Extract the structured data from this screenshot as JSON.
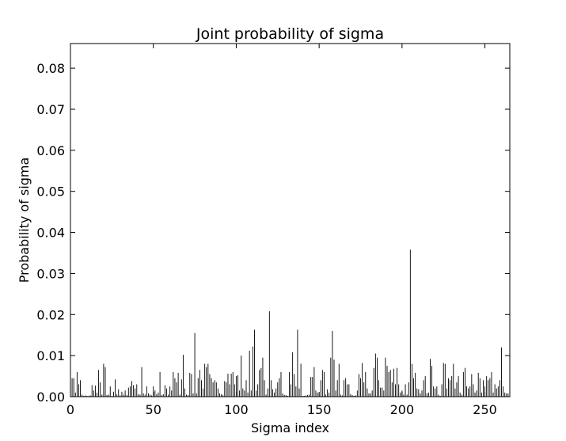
{
  "chart_data": {
    "type": "bar",
    "title": "Joint probability of sigma",
    "xlabel": "Sigma index",
    "ylabel": "Probability of sigma",
    "xlim": [
      0,
      265
    ],
    "ylim": [
      0.0,
      0.086
    ],
    "grid": false,
    "legend": "none",
    "bar_color": "#000000",
    "xticks": [
      0,
      50,
      100,
      150,
      200,
      250
    ],
    "xtick_labels": [
      "0",
      "50",
      "100",
      "150",
      "200",
      "250"
    ],
    "yticks": [
      0.0,
      0.01,
      0.02,
      0.03,
      0.04,
      0.05,
      0.06,
      0.07,
      0.08
    ],
    "ytick_labels": [
      "0.00",
      "0.01",
      "0.02",
      "0.03",
      "0.04",
      "0.05",
      "0.06",
      "0.07",
      "0.08"
    ],
    "x": [
      1,
      2,
      3,
      4,
      5,
      6,
      7,
      8,
      9,
      10,
      11,
      12,
      13,
      14,
      15,
      16,
      17,
      18,
      19,
      20,
      21,
      22,
      23,
      24,
      25,
      26,
      27,
      28,
      29,
      30,
      31,
      32,
      33,
      34,
      35,
      36,
      37,
      38,
      39,
      40,
      41,
      42,
      43,
      44,
      45,
      46,
      47,
      48,
      49,
      50,
      51,
      52,
      53,
      54,
      55,
      56,
      57,
      58,
      59,
      60,
      61,
      62,
      63,
      64,
      65,
      66,
      67,
      68,
      69,
      70,
      71,
      72,
      73,
      74,
      75,
      76,
      77,
      78,
      79,
      80,
      81,
      82,
      83,
      84,
      85,
      86,
      87,
      88,
      89,
      90,
      91,
      92,
      93,
      94,
      95,
      96,
      97,
      98,
      99,
      100,
      101,
      102,
      103,
      104,
      105,
      106,
      107,
      108,
      109,
      110,
      111,
      112,
      113,
      114,
      115,
      116,
      117,
      118,
      119,
      120,
      121,
      122,
      123,
      124,
      125,
      126,
      127,
      128,
      129,
      130,
      131,
      132,
      133,
      134,
      135,
      136,
      137,
      138,
      139,
      140,
      141,
      142,
      143,
      144,
      145,
      146,
      147,
      148,
      149,
      150,
      151,
      152,
      153,
      154,
      155,
      156,
      157,
      158,
      159,
      160,
      161,
      162,
      163,
      164,
      165,
      166,
      167,
      168,
      169,
      170,
      171,
      172,
      173,
      174,
      175,
      176,
      177,
      178,
      179,
      180,
      181,
      182,
      183,
      184,
      185,
      186,
      187,
      188,
      189,
      190,
      191,
      192,
      193,
      194,
      195,
      196,
      197,
      198,
      199,
      200,
      201,
      202,
      203,
      204,
      205,
      206,
      207,
      208,
      209,
      210,
      211,
      212,
      213,
      214,
      215,
      216,
      217,
      218,
      219,
      220,
      221,
      222,
      223,
      224,
      225,
      226,
      227,
      228,
      229,
      230,
      231,
      232,
      233,
      234,
      235,
      236,
      237,
      238,
      239,
      240,
      241,
      242,
      243,
      244,
      245,
      246,
      247,
      248,
      249,
      250,
      251,
      252,
      253,
      254,
      255,
      256,
      257,
      258,
      259,
      260,
      261,
      262,
      263,
      264
    ],
    "values": [
      0.0045,
      0.0045,
      0.001,
      0.006,
      0.003,
      0.004,
      0.0005,
      0.0002,
      0.0003,
      0.0002,
      0.0002,
      0.0003,
      0.0028,
      0.0015,
      0.0027,
      0.001,
      0.0065,
      0.0035,
      0.0005,
      0.008,
      0.0072,
      0.0004,
      0.0005,
      0.0025,
      0.0002,
      0.0012,
      0.0042,
      0.0006,
      0.0018,
      0.0003,
      0.0012,
      0.0005,
      0.0015,
      0.0004,
      0.0022,
      0.0025,
      0.0038,
      0.0028,
      0.002,
      0.003,
      0.0006,
      0.0005,
      0.0072,
      0.0008,
      0.0005,
      0.0025,
      0.0008,
      0.0005,
      0.0003,
      0.0025,
      0.0015,
      0.0006,
      0.001,
      0.006,
      0.0004,
      0.0006,
      0.0028,
      0.002,
      0.0005,
      0.0025,
      0.0015,
      0.006,
      0.0045,
      0.0035,
      0.0058,
      0.0005,
      0.0042,
      0.0102,
      0.002,
      0.0005,
      0.0004,
      0.0058,
      0.0055,
      0.0008,
      0.0155,
      0.0008,
      0.0045,
      0.0065,
      0.004,
      0.002,
      0.008,
      0.0072,
      0.008,
      0.0055,
      0.0045,
      0.0035,
      0.004,
      0.0035,
      0.002,
      0.0008,
      0.0006,
      0.0004,
      0.0038,
      0.0035,
      0.0056,
      0.003,
      0.0056,
      0.006,
      0.003,
      0.005,
      0.0052,
      0.0015,
      0.01,
      0.002,
      0.0015,
      0.004,
      0.001,
      0.0112,
      0.0015,
      0.0122,
      0.0163,
      0.0015,
      0.003,
      0.0065,
      0.007,
      0.0095,
      0.004,
      0.0005,
      0.002,
      0.0208,
      0.004,
      0.0018,
      0.001,
      0.002,
      0.0035,
      0.0045,
      0.006,
      0.0008,
      0.0004,
      0.0004,
      0.0002,
      0.006,
      0.003,
      0.0108,
      0.0055,
      0.0025,
      0.0163,
      0.002,
      0.008,
      0.0002,
      0.0002,
      0.0003,
      0.0004,
      0.0005,
      0.0048,
      0.0048,
      0.0072,
      0.0015,
      0.001,
      0.0008,
      0.004,
      0.0065,
      0.006,
      0.0005,
      0.0018,
      0.001,
      0.0095,
      0.016,
      0.009,
      0.0015,
      0.004,
      0.008,
      0.0005,
      0.0003,
      0.004,
      0.0045,
      0.003,
      0.003,
      0.0006,
      0.0004,
      0.0002,
      0.0003,
      0.0015,
      0.0055,
      0.0045,
      0.0082,
      0.0035,
      0.006,
      0.002,
      0.0008,
      0.0008,
      0.0015,
      0.007,
      0.0105,
      0.0095,
      0.004,
      0.0022,
      0.0022,
      0.0015,
      0.0095,
      0.0075,
      0.006,
      0.0065,
      0.0035,
      0.0068,
      0.003,
      0.007,
      0.003,
      0.001,
      0.0015,
      0.0005,
      0.003,
      0.0005,
      0.0035,
      0.0358,
      0.008,
      0.0045,
      0.0058,
      0.002,
      0.0018,
      0.0008,
      0.0015,
      0.004,
      0.005,
      0.0008,
      0.001,
      0.0092,
      0.0075,
      0.0025,
      0.002,
      0.0025,
      0.0005,
      0.0002,
      0.003,
      0.0082,
      0.008,
      0.002,
      0.0045,
      0.004,
      0.005,
      0.008,
      0.002,
      0.0035,
      0.005,
      0.001,
      0.0005,
      0.006,
      0.007,
      0.0025,
      0.002,
      0.0025,
      0.0055,
      0.003,
      0.001,
      0.0015,
      0.0058,
      0.0045,
      0.001,
      0.004,
      0.0025,
      0.005,
      0.004,
      0.0045,
      0.006,
      0.001,
      0.003,
      0.002,
      0.0025,
      0.004,
      0.012,
      0.0025,
      0.001,
      0.0008,
      0.0008
    ]
  }
}
